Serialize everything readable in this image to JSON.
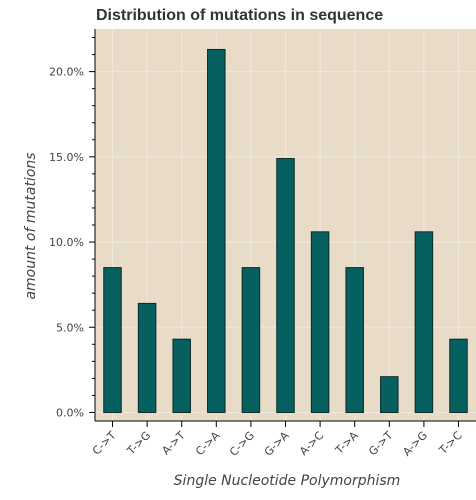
{
  "colors": {
    "background": "#e8dcc9",
    "bar_fill": "#06605f",
    "bar_stroke": "#0b2a28",
    "grid": "#f0e8dc",
    "axis": "#000000",
    "text": "#333333"
  },
  "chart_data": {
    "type": "bar",
    "title": "Distribution of mutations in sequence",
    "xlabel": "Single Nucleotide Polymorphism",
    "ylabel": "amount of mutations",
    "categories": [
      "C->T",
      "T->G",
      "A->T",
      "C->A",
      "C->G",
      "G->A",
      "A->C",
      "T->A",
      "G->T",
      "A->G",
      "T->C"
    ],
    "values": [
      8.5,
      6.4,
      4.3,
      21.3,
      8.5,
      14.9,
      10.6,
      8.5,
      2.1,
      10.6,
      4.3
    ],
    "y_ticks": [
      "0.0%",
      "5.0%",
      "10.0%",
      "15.0%",
      "20.0%"
    ],
    "y_tick_values": [
      0,
      5,
      10,
      15,
      20
    ],
    "ylim": [
      -0.5,
      22.5
    ],
    "grid": true,
    "legend": "none"
  }
}
